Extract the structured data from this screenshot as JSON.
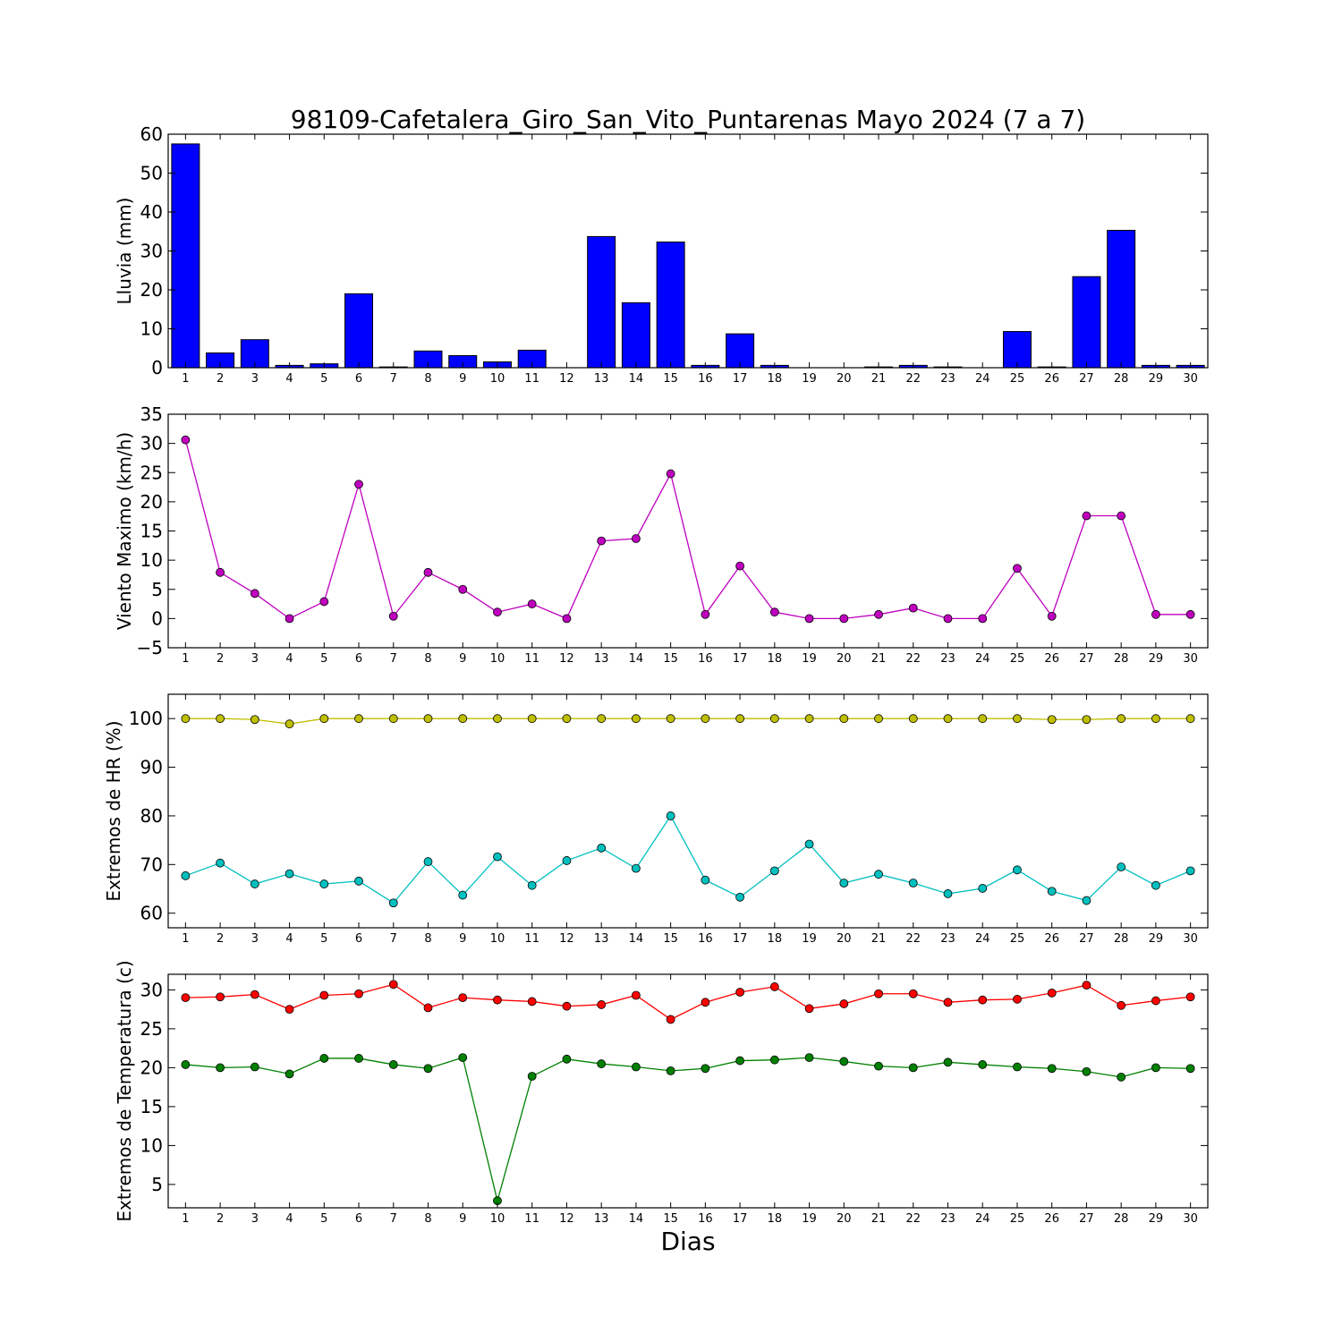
{
  "figure": {
    "title": "98109-Cafetalera_Giro_San_Vito_Puntarenas Mayo 2024  (7 a 7)",
    "xlabel": "Dias"
  },
  "chart_data": [
    {
      "type": "bar",
      "ylabel": "Lluvia (mm)",
      "ylim": [
        0,
        60
      ],
      "yticks": [
        0,
        10,
        20,
        30,
        40,
        50,
        60
      ],
      "categories": [
        1,
        2,
        3,
        4,
        5,
        6,
        7,
        8,
        9,
        10,
        11,
        12,
        13,
        14,
        15,
        16,
        17,
        18,
        19,
        20,
        21,
        22,
        23,
        24,
        25,
        26,
        27,
        28,
        29,
        30
      ],
      "series": [
        {
          "color": "#0000ff",
          "values": [
            57.5,
            3.8,
            7.2,
            0.6,
            1.0,
            19.0,
            0.2,
            4.3,
            3.1,
            1.5,
            4.5,
            0.0,
            33.7,
            16.7,
            32.3,
            0.6,
            8.7,
            0.6,
            0.0,
            0.0,
            0.2,
            0.6,
            0.2,
            0.0,
            9.3,
            0.2,
            23.4,
            35.3,
            0.6,
            0.6
          ]
        }
      ]
    },
    {
      "type": "line",
      "ylabel": "Viento Maximo (km/h)",
      "ylim": [
        -5,
        35
      ],
      "yticks": [
        -5,
        0,
        5,
        10,
        15,
        20,
        25,
        30,
        35
      ],
      "x": [
        1,
        2,
        3,
        4,
        5,
        6,
        7,
        8,
        9,
        10,
        11,
        12,
        13,
        14,
        15,
        16,
        17,
        18,
        19,
        20,
        21,
        22,
        23,
        24,
        25,
        26,
        27,
        28,
        29,
        30
      ],
      "series": [
        {
          "color": "#bf00bf",
          "values": [
            30.6,
            7.9,
            4.3,
            0.0,
            2.9,
            23.0,
            0.4,
            7.9,
            5.0,
            1.1,
            2.5,
            0.0,
            13.3,
            13.7,
            24.8,
            0.7,
            9.0,
            1.1,
            0.0,
            0.0,
            0.7,
            1.8,
            0.0,
            0.0,
            8.6,
            0.4,
            17.6,
            17.6,
            0.7,
            0.7
          ]
        }
      ]
    },
    {
      "type": "line",
      "ylabel": "Extremos de HR (%)",
      "ylim": [
        57,
        105
      ],
      "yticks": [
        60,
        70,
        80,
        90,
        100
      ],
      "x": [
        1,
        2,
        3,
        4,
        5,
        6,
        7,
        8,
        9,
        10,
        11,
        12,
        13,
        14,
        15,
        16,
        17,
        18,
        19,
        20,
        21,
        22,
        23,
        24,
        25,
        26,
        27,
        28,
        29,
        30
      ],
      "series": [
        {
          "color": "#bfbf00",
          "values": [
            100,
            100,
            99.8,
            98.9,
            100,
            100,
            100,
            100,
            100,
            100,
            100,
            100,
            100,
            100,
            100,
            100,
            100,
            100,
            100,
            100,
            100,
            100,
            100,
            100,
            100,
            99.8,
            99.8,
            100,
            100,
            100
          ]
        },
        {
          "color": "#00bfbf",
          "values": [
            67.7,
            70.3,
            66.0,
            68.1,
            66.0,
            66.6,
            62.1,
            70.6,
            63.7,
            71.6,
            65.7,
            70.8,
            73.4,
            69.2,
            80.0,
            66.8,
            63.3,
            68.7,
            74.2,
            66.2,
            68.0,
            66.2,
            64.0,
            65.1,
            68.9,
            64.5,
            62.6,
            69.5,
            65.7,
            68.7
          ]
        }
      ]
    },
    {
      "type": "line",
      "ylabel": "Extremos de Temperatura (c)",
      "ylim": [
        2,
        32
      ],
      "yticks": [
        5,
        10,
        15,
        20,
        25,
        30
      ],
      "x": [
        1,
        2,
        3,
        4,
        5,
        6,
        7,
        8,
        9,
        10,
        11,
        12,
        13,
        14,
        15,
        16,
        17,
        18,
        19,
        20,
        21,
        22,
        23,
        24,
        25,
        26,
        27,
        28,
        29,
        30
      ],
      "series": [
        {
          "color": "#ff0000",
          "values": [
            29.0,
            29.1,
            29.4,
            27.5,
            29.3,
            29.5,
            30.7,
            27.7,
            29.0,
            28.7,
            28.5,
            27.9,
            28.1,
            29.3,
            26.2,
            28.4,
            29.7,
            30.4,
            27.6,
            28.2,
            29.5,
            29.5,
            28.4,
            28.7,
            28.8,
            29.6,
            30.6,
            28.0,
            28.6,
            29.1
          ]
        },
        {
          "color": "#008000",
          "values": [
            20.4,
            20.0,
            20.1,
            19.2,
            21.2,
            21.2,
            20.4,
            19.9,
            21.3,
            2.9,
            18.9,
            21.1,
            20.5,
            20.1,
            19.6,
            19.9,
            20.9,
            21.0,
            21.3,
            20.8,
            20.2,
            20.0,
            20.7,
            20.4,
            20.1,
            19.9,
            19.5,
            18.8,
            20.0,
            19.9
          ]
        }
      ]
    }
  ]
}
